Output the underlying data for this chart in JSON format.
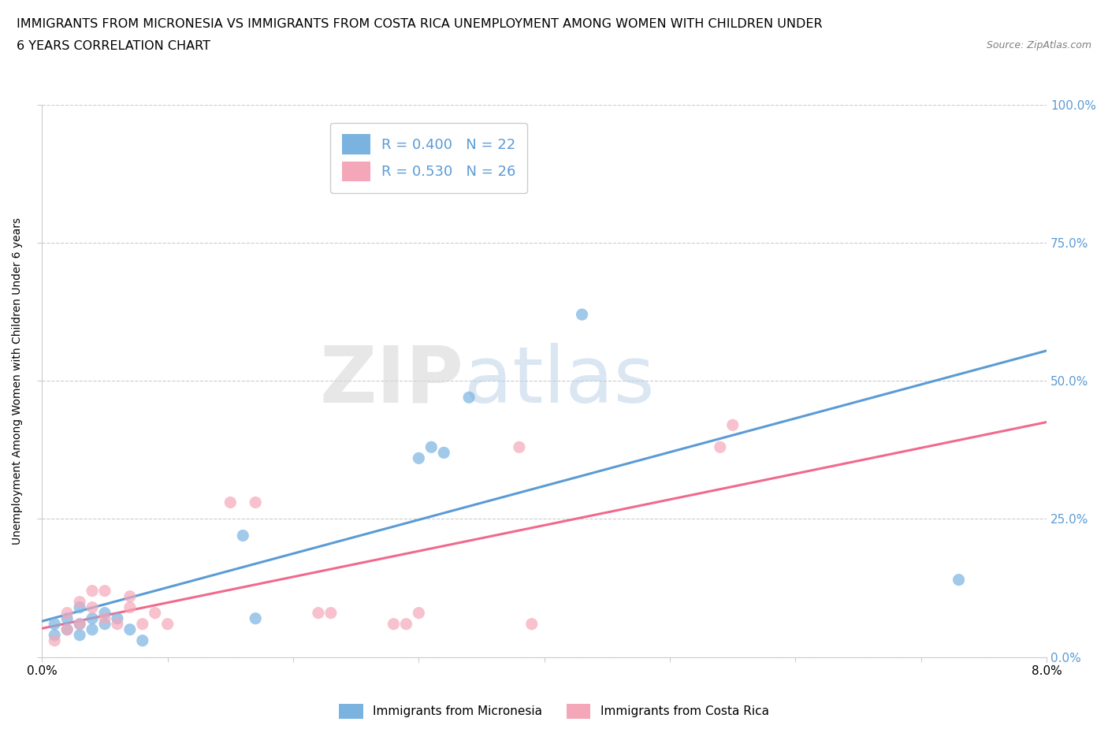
{
  "title_line1": "IMMIGRANTS FROM MICRONESIA VS IMMIGRANTS FROM COSTA RICA UNEMPLOYMENT AMONG WOMEN WITH CHILDREN UNDER",
  "title_line2": "6 YEARS CORRELATION CHART",
  "source": "Source: ZipAtlas.com",
  "ylabel": "Unemployment Among Women with Children Under 6 years",
  "xlim": [
    0.0,
    0.08
  ],
  "ylim": [
    0.0,
    1.0
  ],
  "xticks": [
    0.0,
    0.01,
    0.02,
    0.03,
    0.04,
    0.05,
    0.06,
    0.07,
    0.08
  ],
  "yticks": [
    0.0,
    0.25,
    0.5,
    0.75,
    1.0
  ],
  "right_ytick_labels": [
    "0.0%",
    "25.0%",
    "50.0%",
    "75.0%",
    "100.0%"
  ],
  "xtick_labels": [
    "0.0%",
    "",
    "",
    "",
    "",
    "",
    "",
    "",
    "8.0%"
  ],
  "micronesia_color": "#7ab3e0",
  "costa_rica_color": "#f4a7b9",
  "micronesia_line_color": "#5b9bd5",
  "costa_rica_line_color": "#f06a8c",
  "micronesia_R": 0.4,
  "micronesia_N": 22,
  "costa_rica_R": 0.53,
  "costa_rica_N": 26,
  "legend_label_micronesia": "Immigrants from Micronesia",
  "legend_label_costa_rica": "Immigrants from Costa Rica",
  "watermark_zip": "ZIP",
  "watermark_atlas": "atlas",
  "background_color": "#ffffff",
  "grid_color": "#cccccc",
  "micronesia_x": [
    0.001,
    0.001,
    0.002,
    0.002,
    0.003,
    0.003,
    0.003,
    0.004,
    0.004,
    0.005,
    0.005,
    0.006,
    0.007,
    0.008,
    0.016,
    0.017,
    0.03,
    0.031,
    0.032,
    0.034,
    0.043,
    0.073
  ],
  "micronesia_y": [
    0.04,
    0.06,
    0.05,
    0.07,
    0.04,
    0.06,
    0.09,
    0.05,
    0.07,
    0.06,
    0.08,
    0.07,
    0.05,
    0.03,
    0.22,
    0.07,
    0.36,
    0.38,
    0.37,
    0.47,
    0.62,
    0.14
  ],
  "costa_rica_x": [
    0.001,
    0.002,
    0.002,
    0.003,
    0.003,
    0.004,
    0.004,
    0.005,
    0.005,
    0.006,
    0.007,
    0.007,
    0.008,
    0.009,
    0.01,
    0.015,
    0.017,
    0.022,
    0.023,
    0.028,
    0.029,
    0.03,
    0.038,
    0.039,
    0.054,
    0.055
  ],
  "costa_rica_y": [
    0.03,
    0.05,
    0.08,
    0.06,
    0.1,
    0.09,
    0.12,
    0.07,
    0.12,
    0.06,
    0.09,
    0.11,
    0.06,
    0.08,
    0.06,
    0.28,
    0.28,
    0.08,
    0.08,
    0.06,
    0.06,
    0.08,
    0.38,
    0.06,
    0.38,
    0.42
  ]
}
